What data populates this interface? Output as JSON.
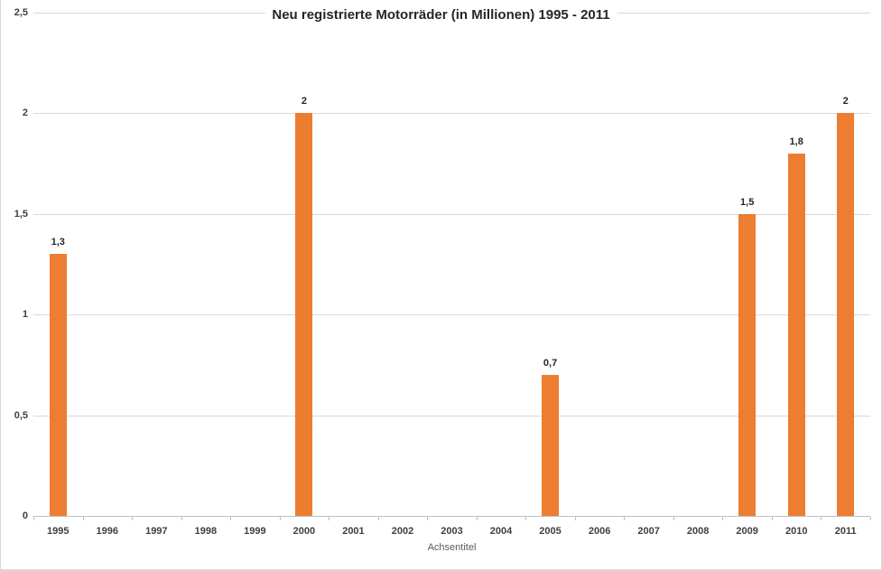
{
  "page": {
    "background_color": "#ffffff",
    "border_color": "#d7d7dc"
  },
  "chart_data": {
    "type": "bar",
    "title": "Neu registrierte Motorräder (in Millionen) 1995 - 2011",
    "xlabel": "Achsentitel",
    "ylabel": "",
    "categories": [
      "1995",
      "1996",
      "1997",
      "1998",
      "1999",
      "2000",
      "2001",
      "2002",
      "2003",
      "2004",
      "2005",
      "2006",
      "2007",
      "2008",
      "2009",
      "2010",
      "2011"
    ],
    "values": [
      1.3,
      null,
      null,
      null,
      null,
      2,
      null,
      null,
      null,
      null,
      0.7,
      null,
      null,
      null,
      1.5,
      1.8,
      2
    ],
    "value_labels": [
      "1,3",
      null,
      null,
      null,
      null,
      "2",
      null,
      null,
      null,
      null,
      "0,7",
      null,
      null,
      null,
      "1,5",
      "1,8",
      "2"
    ],
    "y_ticks": [
      {
        "value": 0,
        "label": "0"
      },
      {
        "value": 0.5,
        "label": "0,5"
      },
      {
        "value": 1,
        "label": "1"
      },
      {
        "value": 1.5,
        "label": "1,5"
      },
      {
        "value": 2,
        "label": "2"
      },
      {
        "value": 2.5,
        "label": "2,5"
      }
    ],
    "ylim": [
      0,
      2.5
    ],
    "grid": true,
    "legend": "none",
    "bar_color": "#ed7d31",
    "gridline_color": "#d9d9d9",
    "axis_line_color": "#bfbfbf",
    "title_color": "#262626",
    "tick_label_color": "#404040",
    "axis_title_color": "#595959"
  }
}
